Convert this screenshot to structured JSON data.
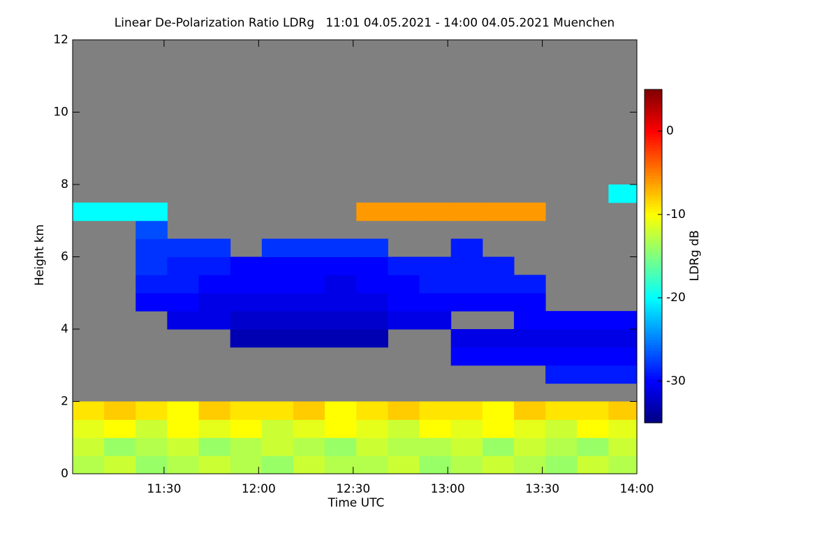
{
  "chart_data": {
    "type": "heatmap",
    "title": "Linear De-Polarization Ratio LDRg   11:01 04.05.2021 - 14:00 04.05.2021 Muenchen",
    "x_label": "Time UTC",
    "y_label": "Height km",
    "xlim": [
      661,
      840
    ],
    "xticks": [
      {
        "value": 690,
        "label": "11:30"
      },
      {
        "value": 720,
        "label": "12:00"
      },
      {
        "value": 750,
        "label": "12:30"
      },
      {
        "value": 780,
        "label": "13:00"
      },
      {
        "value": 810,
        "label": "13:30"
      },
      {
        "value": 840,
        "label": "14:00"
      }
    ],
    "ylim": [
      0,
      12
    ],
    "yticks": [
      0,
      2,
      4,
      6,
      8,
      10,
      12
    ],
    "xbins": [
      661,
      671,
      681,
      691,
      701,
      711,
      721,
      731,
      741,
      751,
      761,
      771,
      781,
      791,
      801,
      811,
      821,
      831,
      840
    ],
    "ybins": [
      0,
      0.5,
      1,
      1.5,
      2,
      2.5,
      3,
      3.5,
      4,
      4.5,
      5,
      5.5,
      6,
      6.5,
      7,
      7.5,
      8
    ],
    "z": [
      [
        -13,
        -12,
        -14,
        -13,
        -12,
        -13,
        -14,
        -12,
        -13,
        -13,
        -12,
        -14,
        -13,
        -12,
        -13,
        -14,
        -12,
        -13
      ],
      [
        -12,
        -14,
        -13,
        -12,
        -14,
        -13,
        -12,
        -13,
        -14,
        -12,
        -13,
        -13,
        -12,
        -14,
        -12,
        -13,
        -14,
        -12
      ],
      [
        -11,
        -10,
        -12,
        -10,
        -11,
        -10,
        -12,
        -11,
        -10,
        -11,
        -12,
        -10,
        -11,
        -10,
        -11,
        -12,
        -10,
        -11
      ],
      [
        -9,
        -8,
        -9,
        -10,
        -8,
        -9,
        -9,
        -8,
        -10,
        -9,
        -8,
        -9,
        -9,
        -10,
        -8,
        -9,
        -9,
        -8
      ],
      [
        null,
        null,
        null,
        null,
        null,
        null,
        null,
        null,
        null,
        null,
        null,
        null,
        null,
        null,
        null,
        null,
        null,
        null
      ],
      [
        null,
        null,
        null,
        null,
        null,
        null,
        null,
        null,
        null,
        null,
        null,
        null,
        null,
        null,
        null,
        -29,
        -29,
        -29
      ],
      [
        null,
        null,
        null,
        null,
        null,
        null,
        null,
        null,
        null,
        null,
        null,
        null,
        -30,
        -30,
        -30,
        -30,
        -30,
        -30
      ],
      [
        null,
        null,
        null,
        null,
        null,
        -33,
        -33,
        -33,
        -33,
        -33,
        null,
        null,
        -31,
        -31,
        -31,
        -31,
        -31,
        -31
      ],
      [
        null,
        null,
        null,
        -31,
        -31,
        -32,
        -32,
        -32,
        -32,
        -32,
        -31,
        -31,
        null,
        null,
        -30,
        -30,
        -30,
        -30
      ],
      [
        null,
        null,
        -30,
        -30,
        -31,
        -31,
        -31,
        -31,
        -31,
        -31,
        -30,
        -30,
        -30,
        -30,
        -30,
        null,
        null,
        null
      ],
      [
        null,
        null,
        -29,
        -29,
        -30,
        -30,
        -30,
        -30,
        -31,
        -30,
        -30,
        -29,
        -29,
        -29,
        -29,
        null,
        null,
        null
      ],
      [
        null,
        null,
        -28,
        -29,
        -29,
        -30,
        -30,
        -30,
        -30,
        -30,
        -29,
        -29,
        -29,
        -29,
        null,
        null,
        null,
        null
      ],
      [
        null,
        null,
        -28,
        -28,
        -28,
        null,
        -28,
        -28,
        -28,
        -28,
        null,
        null,
        -29,
        null,
        null,
        null,
        null,
        null
      ],
      [
        null,
        null,
        -27,
        null,
        null,
        null,
        null,
        null,
        null,
        null,
        null,
        null,
        null,
        null,
        null,
        null,
        null,
        null
      ],
      [
        -20,
        -20,
        -20,
        null,
        null,
        null,
        null,
        null,
        null,
        -6,
        -6,
        -6,
        -6,
        -6,
        -6,
        null,
        null,
        null
      ],
      [
        null,
        null,
        null,
        null,
        null,
        null,
        null,
        null,
        null,
        null,
        null,
        null,
        null,
        null,
        null,
        null,
        null,
        -20
      ]
    ],
    "zlim": [
      -35,
      5
    ],
    "zticks": [
      0,
      -10,
      -20,
      -30
    ],
    "colorbar_label": "LDRg dB",
    "colormap": "jet",
    "nan_color": "#808080"
  }
}
